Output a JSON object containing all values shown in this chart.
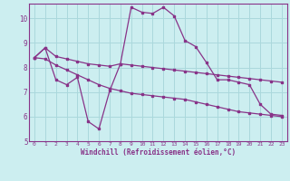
{
  "background_color": "#cceef0",
  "grid_color": "#aad8dc",
  "line_color": "#883388",
  "xlabel": "Windchill (Refroidissement éolien,°C)",
  "xlim": [
    -0.5,
    23.5
  ],
  "ylim": [
    5,
    10.6
  ],
  "yticks": [
    5,
    6,
    7,
    8,
    9,
    10
  ],
  "xticks": [
    0,
    1,
    2,
    3,
    4,
    5,
    6,
    7,
    8,
    9,
    10,
    11,
    12,
    13,
    14,
    15,
    16,
    17,
    18,
    19,
    20,
    21,
    22,
    23
  ],
  "line1_x": [
    0,
    1,
    2,
    3,
    4,
    5,
    6,
    7,
    8,
    9,
    10,
    11,
    12,
    13,
    14,
    15,
    16,
    17,
    18,
    19,
    20,
    21,
    22,
    23
  ],
  "line1_y": [
    8.4,
    8.8,
    8.45,
    8.35,
    8.25,
    8.15,
    8.1,
    8.05,
    8.15,
    8.1,
    8.05,
    8.0,
    7.95,
    7.9,
    7.85,
    7.8,
    7.75,
    7.7,
    7.65,
    7.6,
    7.55,
    7.5,
    7.45,
    7.4
  ],
  "line2_x": [
    0,
    1,
    2,
    3,
    4,
    5,
    6,
    7,
    8,
    9,
    10,
    11,
    12,
    13,
    14,
    15,
    16,
    17,
    18,
    19,
    20,
    21,
    22,
    23
  ],
  "line2_y": [
    8.4,
    8.8,
    7.5,
    7.3,
    7.6,
    5.8,
    5.5,
    7.05,
    8.15,
    10.45,
    10.25,
    10.2,
    10.45,
    10.1,
    9.1,
    8.85,
    8.2,
    7.5,
    7.5,
    7.4,
    7.3,
    6.5,
    6.1,
    6.05
  ],
  "line3_x": [
    0,
    1,
    2,
    3,
    4,
    5,
    6,
    7,
    8,
    9,
    10,
    11,
    12,
    13,
    14,
    15,
    16,
    17,
    18,
    19,
    20,
    21,
    22,
    23
  ],
  "line3_y": [
    8.4,
    8.35,
    8.1,
    7.9,
    7.7,
    7.5,
    7.3,
    7.15,
    7.05,
    6.95,
    6.9,
    6.85,
    6.8,
    6.75,
    6.7,
    6.6,
    6.5,
    6.4,
    6.3,
    6.2,
    6.15,
    6.1,
    6.05,
    6.0
  ]
}
